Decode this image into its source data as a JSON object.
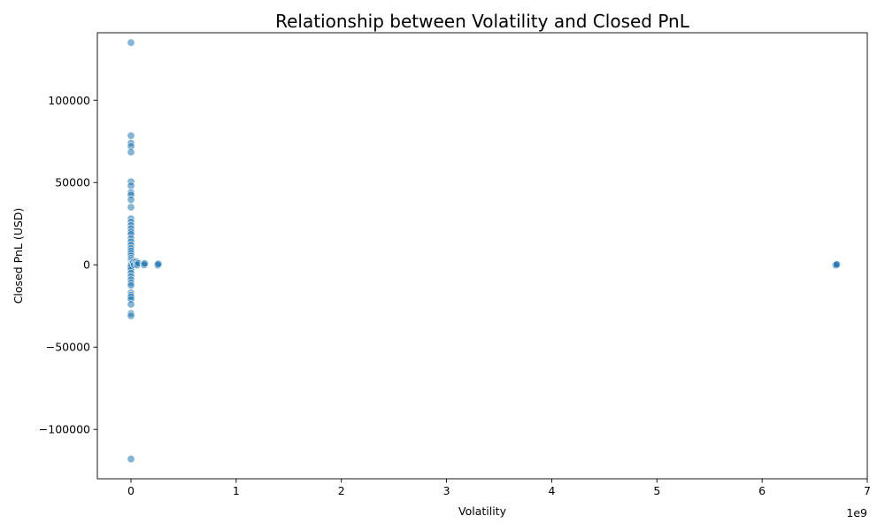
{
  "chart_data": {
    "type": "scatter",
    "title": "Relationship between Volatility and Closed PnL",
    "xlabel": "Volatility",
    "ylabel": "Closed PnL (USD)",
    "x_offset_label": "1e9",
    "xlim": [
      -320000000,
      7000000000
    ],
    "ylim": [
      -130000,
      141000
    ],
    "x_ticks": [
      0,
      1000000000,
      2000000000,
      3000000000,
      4000000000,
      5000000000,
      6000000000,
      7000000000
    ],
    "x_tick_labels": [
      "0",
      "1",
      "2",
      "3",
      "4",
      "5",
      "6",
      "7"
    ],
    "y_ticks": [
      -100000,
      -50000,
      0,
      50000,
      100000
    ],
    "y_tick_labels": [
      "−100000",
      "−50000",
      "0",
      "50000",
      "100000"
    ],
    "grid": false,
    "marker_color": "#1f77b4",
    "marker_edge_color": "#ffffff",
    "marker_alpha": 0.55,
    "points": [
      {
        "x": 0,
        "y": 135000
      },
      {
        "x": 0,
        "y": 78500
      },
      {
        "x": 0,
        "y": 74000
      },
      {
        "x": 0,
        "y": 72000
      },
      {
        "x": 0,
        "y": 68500
      },
      {
        "x": 0,
        "y": 50500
      },
      {
        "x": 0,
        "y": 48000
      },
      {
        "x": 0,
        "y": 44000
      },
      {
        "x": 0,
        "y": 42500
      },
      {
        "x": 0,
        "y": 39500
      },
      {
        "x": 0,
        "y": 35000
      },
      {
        "x": 0,
        "y": 28000
      },
      {
        "x": 0,
        "y": 26000
      },
      {
        "x": 0,
        "y": 24000
      },
      {
        "x": 0,
        "y": 22000
      },
      {
        "x": 0,
        "y": 20000
      },
      {
        "x": 0,
        "y": 18500
      },
      {
        "x": 0,
        "y": 16000
      },
      {
        "x": 0,
        "y": 14000
      },
      {
        "x": 0,
        "y": 12000
      },
      {
        "x": 0,
        "y": 10000
      },
      {
        "x": 0,
        "y": 8500
      },
      {
        "x": 0,
        "y": 7000
      },
      {
        "x": 0,
        "y": 5500
      },
      {
        "x": 0,
        "y": 4000
      },
      {
        "x": 0,
        "y": 3000
      },
      {
        "x": 0,
        "y": 2000
      },
      {
        "x": 0,
        "y": 1000
      },
      {
        "x": 0,
        "y": 500
      },
      {
        "x": 0,
        "y": 0
      },
      {
        "x": 0,
        "y": -500
      },
      {
        "x": 0,
        "y": -1500
      },
      {
        "x": 0,
        "y": -3000
      },
      {
        "x": 0,
        "y": -5000
      },
      {
        "x": 0,
        "y": -7000
      },
      {
        "x": 0,
        "y": -9000
      },
      {
        "x": 0,
        "y": -11000
      },
      {
        "x": 0,
        "y": -12500
      },
      {
        "x": 0,
        "y": -17000
      },
      {
        "x": 0,
        "y": -18500
      },
      {
        "x": 0,
        "y": -19500
      },
      {
        "x": 0,
        "y": -21000
      },
      {
        "x": 0,
        "y": -24000
      },
      {
        "x": 0,
        "y": -29500
      },
      {
        "x": 0,
        "y": -31000
      },
      {
        "x": 0,
        "y": -118000
      },
      {
        "x": 20000000,
        "y": 1500
      },
      {
        "x": 30000000,
        "y": 0
      },
      {
        "x": 50000000,
        "y": 2000
      },
      {
        "x": 55000000,
        "y": 500
      },
      {
        "x": 60000000,
        "y": -200
      },
      {
        "x": 70000000,
        "y": 1000
      },
      {
        "x": 120000000,
        "y": 500
      },
      {
        "x": 125000000,
        "y": -100
      },
      {
        "x": 130000000,
        "y": 800
      },
      {
        "x": 250000000,
        "y": 300
      },
      {
        "x": 255000000,
        "y": -300
      },
      {
        "x": 260000000,
        "y": 600
      },
      {
        "x": 6700000000,
        "y": 0
      },
      {
        "x": 6705000000,
        "y": 500
      },
      {
        "x": 6700000000,
        "y": -300
      },
      {
        "x": 6710000000,
        "y": 200
      }
    ]
  }
}
